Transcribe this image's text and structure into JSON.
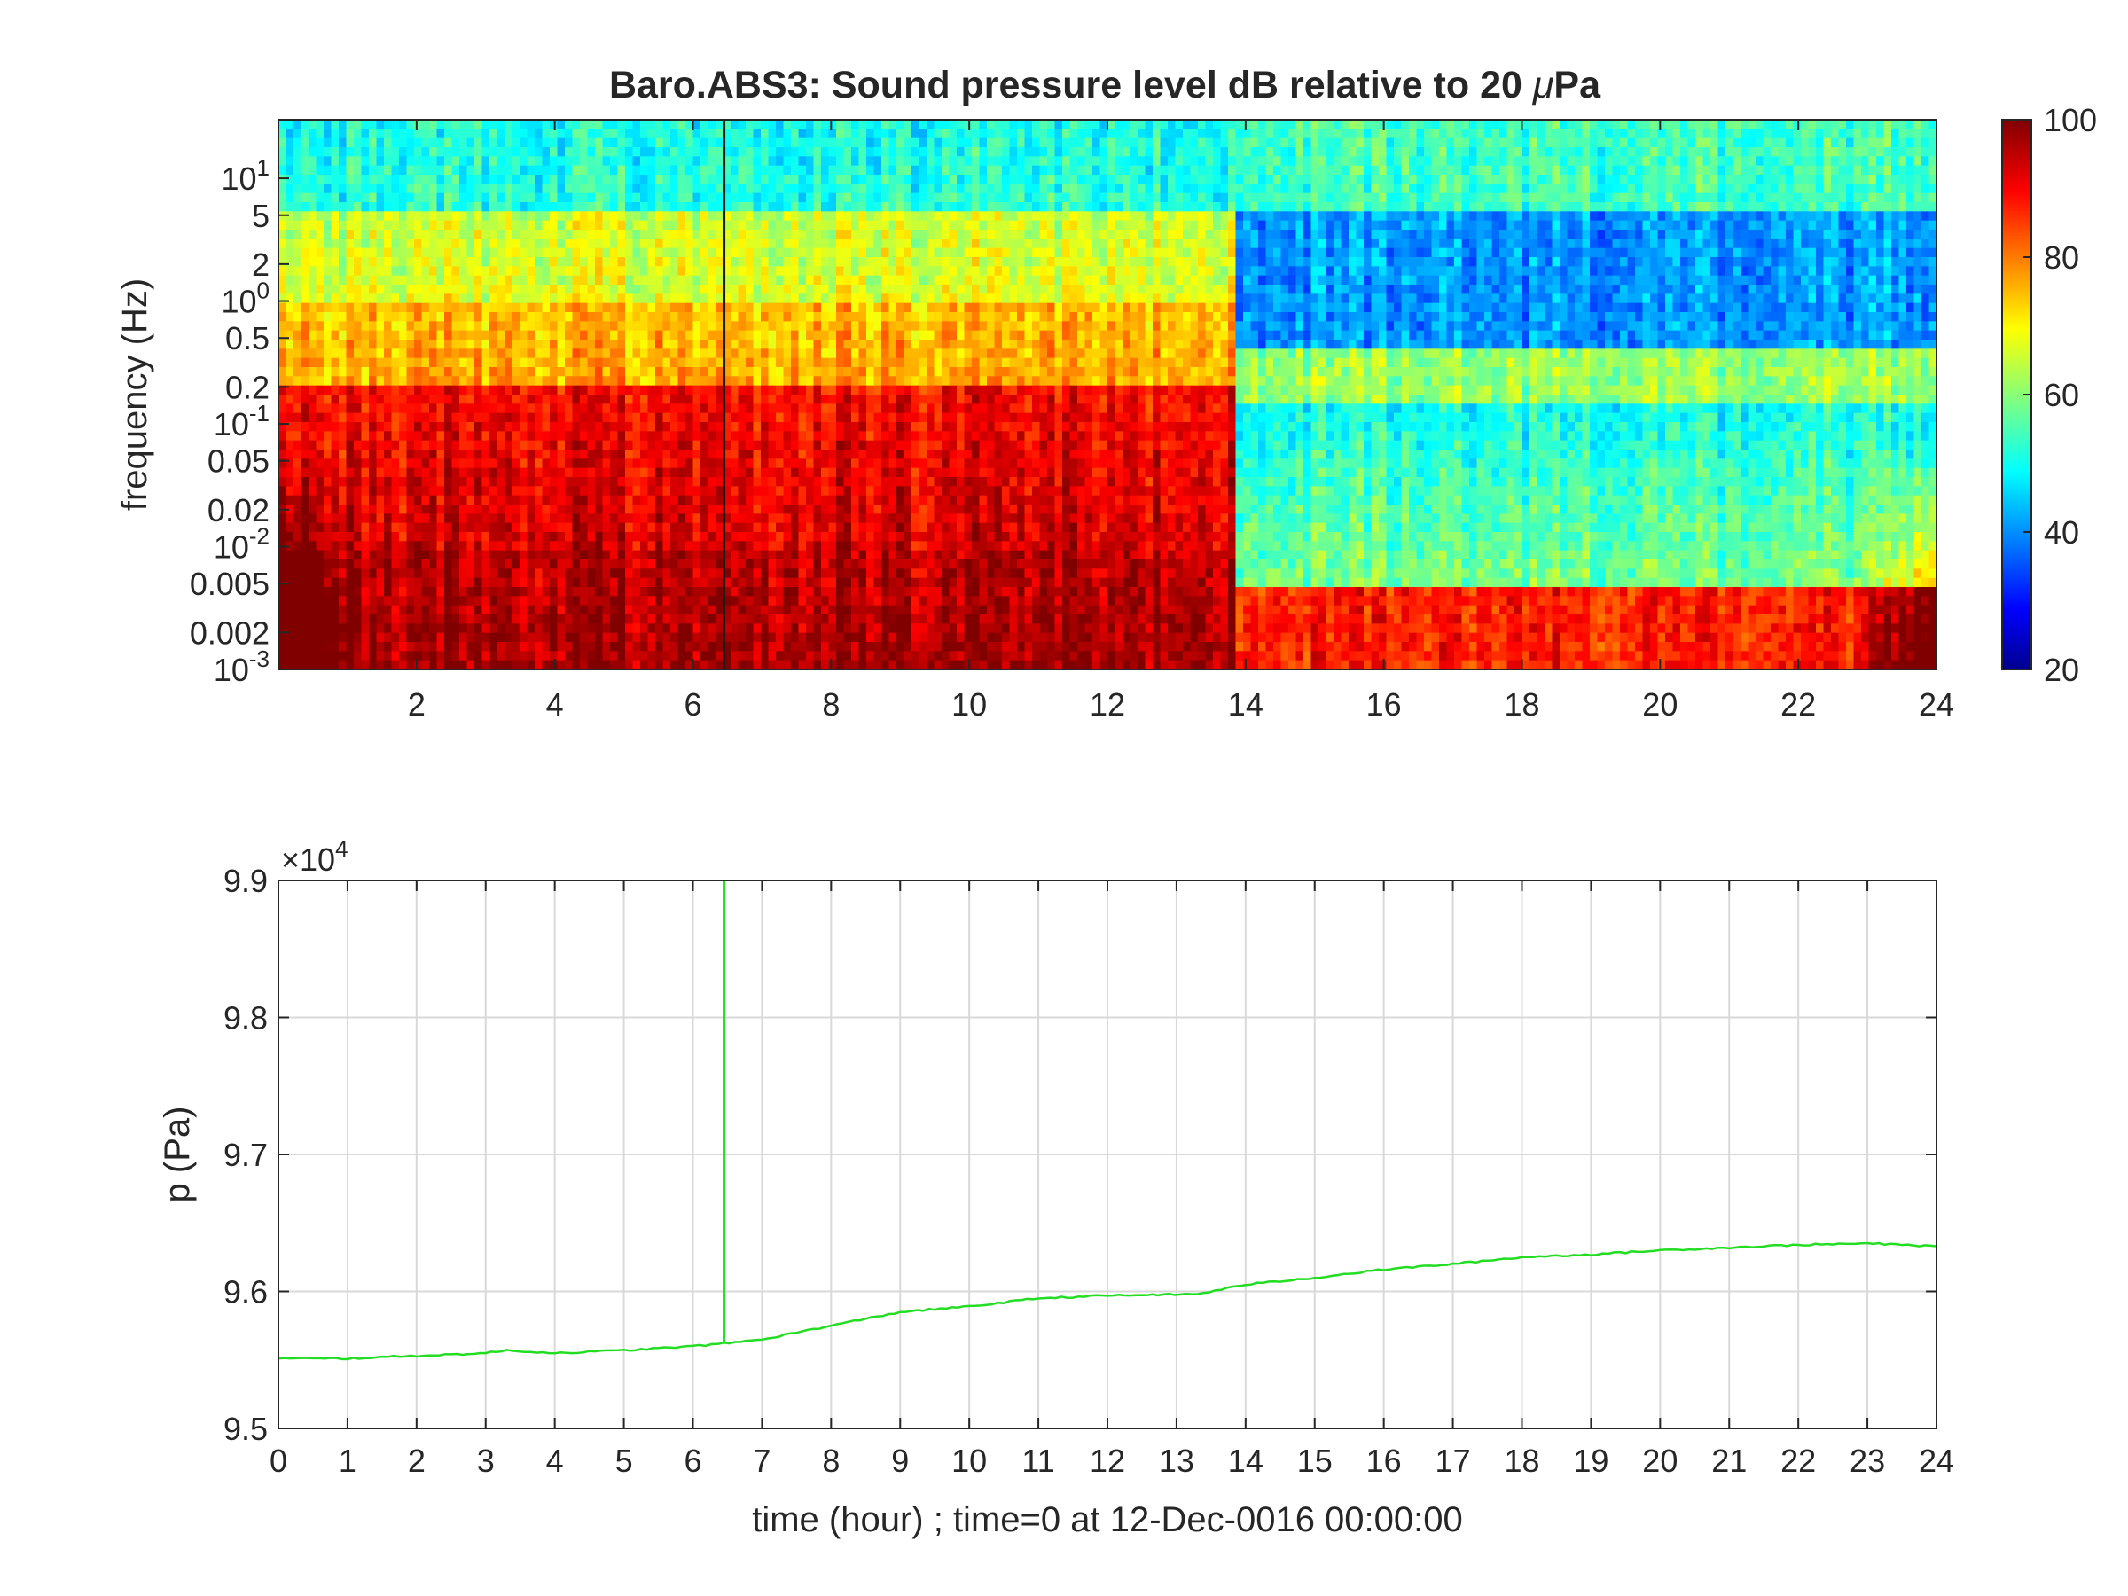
{
  "chart_data": [
    {
      "type": "heatmap",
      "title_main": "Baro.ABS3: Sound pressure level dB relative to 20 ",
      "title_mu": "μ",
      "title_end": "Pa",
      "ylabel": "frequency (Hz)",
      "y_scale": "log",
      "ylim": [
        0.001,
        30
      ],
      "xlim": [
        0,
        24
      ],
      "x_ticks": [
        2,
        4,
        6,
        8,
        10,
        12,
        14,
        16,
        18,
        20,
        22,
        24
      ],
      "y_tick_labels": [
        {
          "value": 10,
          "base": "10",
          "exp": "1"
        },
        {
          "value": 5,
          "text": "5"
        },
        {
          "value": 2,
          "text": "2"
        },
        {
          "value": 1,
          "base": "10",
          "exp": "0"
        },
        {
          "value": 0.5,
          "text": "0.5"
        },
        {
          "value": 0.2,
          "text": "0.2"
        },
        {
          "value": 0.1,
          "base": "10",
          "exp": "-1"
        },
        {
          "value": 0.05,
          "text": "0.05"
        },
        {
          "value": 0.02,
          "text": "0.02"
        },
        {
          "value": 0.01,
          "base": "10",
          "exp": "-2"
        },
        {
          "value": 0.005,
          "text": "0.005"
        },
        {
          "value": 0.002,
          "text": "0.002"
        },
        {
          "value": 0.001,
          "base": "10",
          "exp": "-3"
        }
      ],
      "colorbar": {
        "range": [
          20,
          100
        ],
        "ticks": [
          20,
          40,
          60,
          80,
          100
        ],
        "colormap": "jet"
      },
      "marker_line_hour": 6.45,
      "regime_change_hour": 13.8,
      "approx_levels_dB": {
        "before_13.8h": {
          "above_5Hz": 55,
          "1_to_5Hz": 68,
          "0.2_to_1Hz": 75,
          "0.01_to_0.2Hz": 88,
          "below_0.01Hz": 90
        },
        "after_13.8h": {
          "above_5Hz": 55,
          "1_to_5Hz": 42,
          "0.15_to_0.4Hz": 62,
          "0.01_to_0.15Hz": 52,
          "below_0.005Hz": 88
        }
      }
    },
    {
      "type": "line",
      "ylabel": "p (Pa)",
      "xlabel": "time (hour) ; time=0 at 12-Dec-0016 00:00:00",
      "y_multiplier": {
        "base": "×10",
        "exp": "4"
      },
      "ylim": [
        9.5,
        9.9
      ],
      "xlim": [
        0,
        24
      ],
      "x_ticks": [
        0,
        1,
        2,
        3,
        4,
        5,
        6,
        7,
        8,
        9,
        10,
        11,
        12,
        13,
        14,
        15,
        16,
        17,
        18,
        19,
        20,
        21,
        22,
        23,
        24
      ],
      "y_ticks": [
        "9.5",
        "9.6",
        "9.7",
        "9.8",
        "9.9"
      ],
      "grid": true,
      "series_color": "#22dd22",
      "spike": {
        "x": 6.45,
        "y_from": 9.562,
        "y_to": 9.9
      },
      "x": [
        0,
        1,
        2,
        3,
        3.3,
        4,
        5,
        6,
        6.45,
        7,
        8,
        9,
        10,
        11,
        12,
        13.3,
        14,
        15,
        16,
        17,
        18,
        19,
        20,
        21,
        22,
        23,
        24
      ],
      "y": [
        9.551,
        9.551,
        9.553,
        9.555,
        9.557,
        9.555,
        9.557,
        9.56,
        9.562,
        9.565,
        9.575,
        9.585,
        9.589,
        9.595,
        9.597,
        9.598,
        9.605,
        9.61,
        9.616,
        9.62,
        9.625,
        9.627,
        9.63,
        9.632,
        9.634,
        9.635,
        9.633
      ]
    }
  ]
}
